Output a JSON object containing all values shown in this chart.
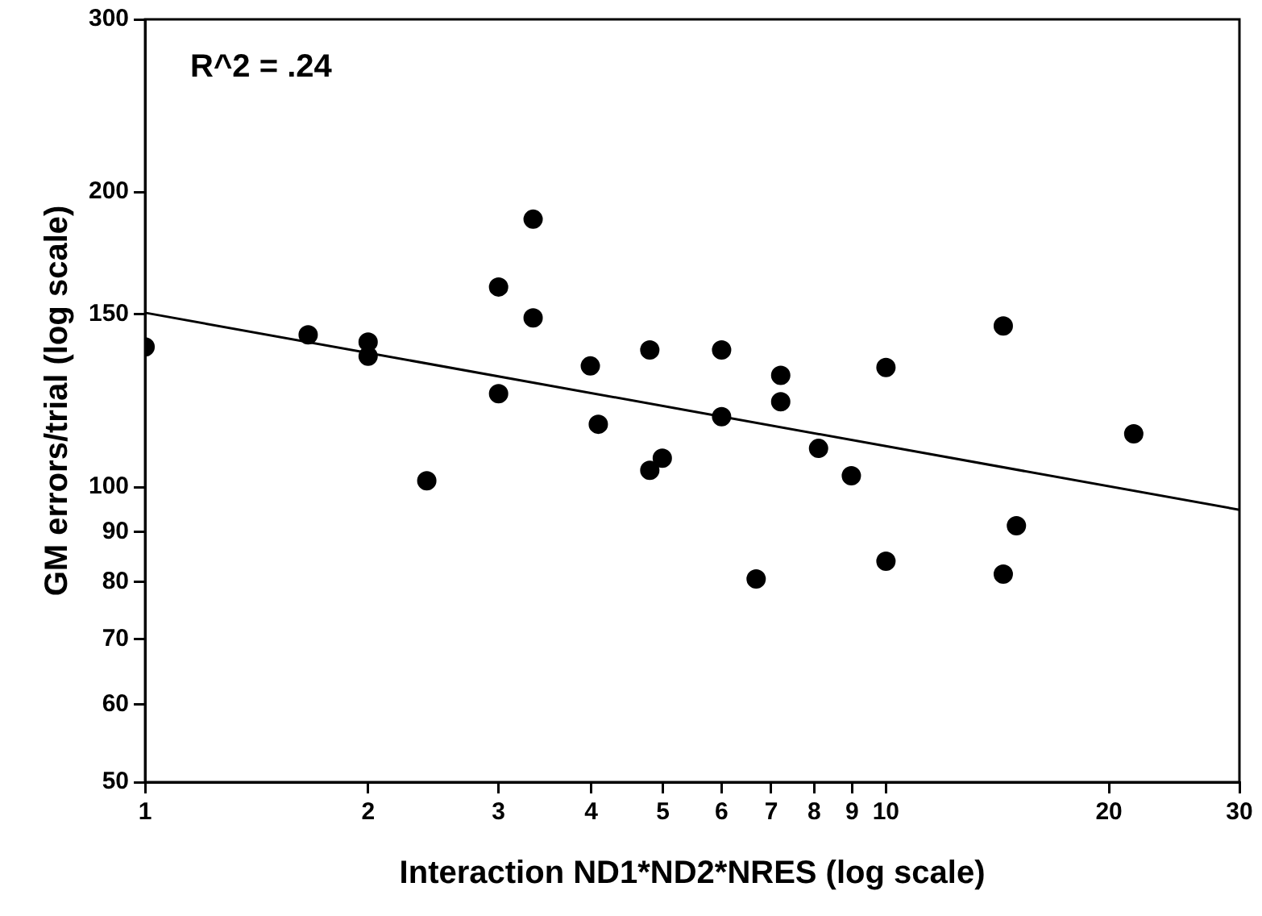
{
  "chart_data": {
    "type": "scatter",
    "xlabel": "Interaction ND1*ND2*NRES (log scale)",
    "ylabel": "GM errors/trial (log scale)",
    "annotations": [
      "R^2 = .24"
    ],
    "log": "xy",
    "grid": false,
    "legend": false,
    "marker": "circle",
    "xlim": [
      1,
      30
    ],
    "ylim": [
      50,
      300
    ],
    "xticks": [
      1,
      2,
      3,
      4,
      5,
      6,
      7,
      8,
      9,
      10,
      20,
      30
    ],
    "yticks": [
      50,
      60,
      70,
      80,
      90,
      100,
      150,
      200,
      300
    ],
    "series": [
      {
        "type": "scatter",
        "color": "#000000",
        "x": [
          1,
          1.66,
          2,
          2,
          2.4,
          3,
          3,
          3.34,
          3.34,
          3.99,
          4.09,
          4.8,
          4.8,
          4.99,
          6,
          6,
          6.68,
          7.21,
          7.21,
          8.11,
          8.98,
          10,
          10,
          14.4,
          14.4,
          15,
          21.6
        ],
        "values": [
          139,
          143,
          140.6,
          136,
          101.5,
          160,
          124.5,
          187.6,
          148.8,
          132.9,
          115.9,
          138,
          104,
          107,
          138,
          118,
          80.6,
          130,
          122.2,
          109.5,
          102.7,
          132.4,
          84,
          146,
          81.5,
          91.3,
          113.3
        ]
      },
      {
        "type": "line",
        "color": "#000000",
        "marker": "none",
        "x": [
          1,
          30
        ],
        "values": [
          150.6,
          94.8
        ]
      }
    ]
  }
}
